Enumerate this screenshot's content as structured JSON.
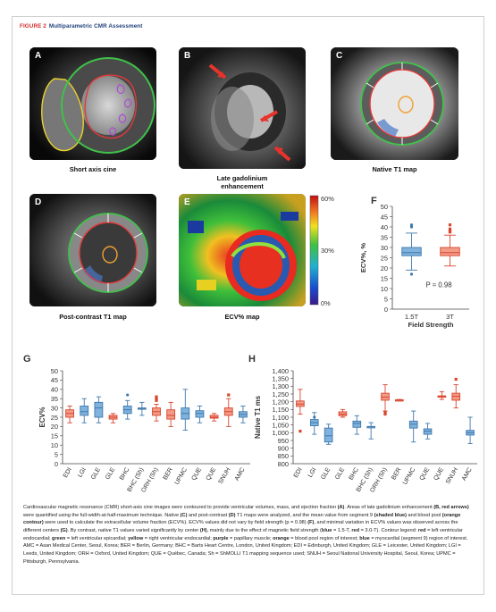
{
  "header": {
    "figure_label": "FIGURE 2",
    "title": "Multiparametric CMR Assessment"
  },
  "panels": {
    "a": {
      "letter": "A",
      "caption": "Short axis cine"
    },
    "b": {
      "letter": "B",
      "caption_line1": "Late gadolinium",
      "caption_line2": "enhancement"
    },
    "c": {
      "letter": "C",
      "caption": "Native T1 map"
    },
    "d": {
      "letter": "D",
      "caption": "Post-contrast T1 map"
    },
    "e": {
      "letter": "E",
      "caption": "ECV% map",
      "colorbar_ticks": [
        "60%",
        "30%",
        "0%"
      ]
    },
    "f": {
      "letter": "F"
    },
    "g": {
      "letter": "G"
    },
    "h": {
      "letter": "H"
    }
  },
  "colors": {
    "blue": "#7fb2dc",
    "blue_edge": "#3f78ad",
    "red": "#f29b86",
    "red_edge": "#d9452e"
  },
  "chart_data": [
    {
      "id": "F",
      "type": "box",
      "ylabel": "ECV%, %",
      "xlabel": "Field Strength",
      "ylim": [
        0,
        50
      ],
      "yticks": [
        0,
        5,
        10,
        15,
        20,
        25,
        30,
        35,
        40,
        45,
        50
      ],
      "categories": [
        "1.5T",
        "3T"
      ],
      "boxes": [
        {
          "category": "1.5T",
          "color": "blue",
          "min": 19,
          "q1": 26,
          "median": 27.5,
          "q3": 30,
          "max": 37,
          "outliers": [
            40,
            41,
            17
          ]
        },
        {
          "category": "3T",
          "color": "red",
          "min": 21,
          "q1": 26,
          "median": 27.5,
          "q3": 30,
          "max": 36,
          "outliers": [
            37.5,
            38,
            39,
            41
          ]
        }
      ],
      "annotation": "P = 0.98"
    },
    {
      "id": "G",
      "type": "box",
      "ylabel": "ECV%",
      "ylim": [
        0,
        50
      ],
      "yticks": [
        0,
        5,
        10,
        15,
        20,
        25,
        30,
        35,
        40,
        45,
        50
      ],
      "categories": [
        "EDI",
        "LGI",
        "GLE",
        "GLE",
        "BHC",
        "BHC (Sh)",
        "ORH (Sh)",
        "BER",
        "UPMC",
        "QUE",
        "QUE",
        "SNUH",
        "AMC"
      ],
      "boxes": [
        {
          "category": "EDI",
          "color": "red",
          "min": 22,
          "q1": 25,
          "median": 27,
          "q3": 29,
          "max": 31,
          "outliers": []
        },
        {
          "category": "LGI",
          "color": "blue",
          "min": 22,
          "q1": 26,
          "median": 28,
          "q3": 31,
          "max": 35,
          "outliers": []
        },
        {
          "category": "GLE",
          "color": "blue",
          "min": 22,
          "q1": 25,
          "median": 30,
          "q3": 33,
          "max": 36,
          "outliers": []
        },
        {
          "category": "GLE",
          "color": "red",
          "min": 22,
          "q1": 24,
          "median": 25,
          "q3": 26,
          "max": 27,
          "outliers": []
        },
        {
          "category": "BHC",
          "color": "blue",
          "min": 24,
          "q1": 27,
          "median": 29,
          "q3": 31,
          "max": 34,
          "outliers": [
            37
          ]
        },
        {
          "category": "BHC (Sh)",
          "color": "blue",
          "min": 26,
          "q1": 29.5,
          "median": 29.5,
          "q3": 30,
          "max": 33,
          "outliers": []
        },
        {
          "category": "ORH (Sh)",
          "color": "red",
          "min": 23,
          "q1": 26,
          "median": 28,
          "q3": 30,
          "max": 32,
          "outliers": [
            34,
            35,
            36
          ]
        },
        {
          "category": "BER",
          "color": "red",
          "min": 20,
          "q1": 24,
          "median": 26,
          "q3": 29,
          "max": 33,
          "outliers": []
        },
        {
          "category": "UPMC",
          "color": "blue",
          "min": 18,
          "q1": 24,
          "median": 27,
          "q3": 30,
          "max": 40,
          "outliers": []
        },
        {
          "category": "QUE",
          "color": "blue",
          "min": 22,
          "q1": 25,
          "median": 27,
          "q3": 28.5,
          "max": 31,
          "outliers": []
        },
        {
          "category": "QUE",
          "color": "red",
          "min": 23,
          "q1": 24.5,
          "median": 25,
          "q3": 26,
          "max": 27,
          "outliers": []
        },
        {
          "category": "SNUH",
          "color": "red",
          "min": 20,
          "q1": 26,
          "median": 28,
          "q3": 30,
          "max": 35,
          "outliers": [
            37
          ]
        },
        {
          "category": "AMC",
          "color": "blue",
          "min": 22,
          "q1": 25,
          "median": 26.5,
          "q3": 28,
          "max": 31,
          "outliers": []
        }
      ]
    },
    {
      "id": "H",
      "type": "box",
      "ylabel": "Native T1 ms",
      "ylim": [
        800,
        1400
      ],
      "yticks": [
        800,
        850,
        900,
        950,
        1000,
        1050,
        1100,
        1150,
        1200,
        1250,
        1300,
        1350,
        1400
      ],
      "ytick_labels": [
        "800",
        "850",
        "900",
        "950",
        "1,000",
        "1,050",
        "1,100",
        "1,150",
        "1,200",
        "1,250",
        "1,300",
        "1,350",
        "1,400"
      ],
      "categories": [
        "EDI",
        "LGI",
        "GLE",
        "GLE",
        "BHC",
        "BHC (Sh)",
        "ORH (Sh)",
        "BER",
        "UPMC",
        "QUE",
        "QUE",
        "SNUH",
        "AMC"
      ],
      "boxes": [
        {
          "category": "EDI",
          "color": "red",
          "min": 1120,
          "q1": 1170,
          "median": 1185,
          "q3": 1205,
          "max": 1280,
          "outliers": [
            1010
          ]
        },
        {
          "category": "LGI",
          "color": "blue",
          "min": 990,
          "q1": 1045,
          "median": 1065,
          "q3": 1085,
          "max": 1130,
          "outliers": [
            1100
          ]
        },
        {
          "category": "GLE",
          "color": "blue",
          "min": 925,
          "q1": 940,
          "median": 980,
          "q3": 1030,
          "max": 1055,
          "outliers": []
        },
        {
          "category": "GLE",
          "color": "red",
          "min": 1100,
          "q1": 1110,
          "median": 1120,
          "q3": 1135,
          "max": 1150,
          "outliers": []
        },
        {
          "category": "BHC",
          "color": "blue",
          "min": 990,
          "q1": 1035,
          "median": 1060,
          "q3": 1075,
          "max": 1110,
          "outliers": []
        },
        {
          "category": "BHC (Sh)",
          "color": "blue",
          "min": 960,
          "q1": 1040,
          "median": 1040,
          "q3": 1040,
          "max": 1065,
          "outliers": []
        },
        {
          "category": "ORH (Sh)",
          "color": "red",
          "min": 1140,
          "q1": 1210,
          "median": 1230,
          "q3": 1255,
          "max": 1310,
          "outliers": [
            1130,
            1120
          ]
        },
        {
          "category": "BER",
          "color": "red",
          "min": 1205,
          "q1": 1209,
          "median": 1211,
          "q3": 1213,
          "max": 1215,
          "outliers": []
        },
        {
          "category": "UPMC",
          "color": "blue",
          "min": 940,
          "q1": 1030,
          "median": 1055,
          "q3": 1075,
          "max": 1140,
          "outliers": []
        },
        {
          "category": "QUE",
          "color": "blue",
          "min": 960,
          "q1": 990,
          "median": 1010,
          "q3": 1025,
          "max": 1060,
          "outliers": []
        },
        {
          "category": "QUE",
          "color": "red",
          "min": 1215,
          "q1": 1230,
          "median": 1235,
          "q3": 1238,
          "max": 1265,
          "outliers": []
        },
        {
          "category": "SNUH",
          "color": "red",
          "min": 1160,
          "q1": 1210,
          "median": 1235,
          "q3": 1255,
          "max": 1310,
          "outliers": [
            1345
          ]
        },
        {
          "category": "AMC",
          "color": "blue",
          "min": 930,
          "q1": 985,
          "median": 1000,
          "q3": 1015,
          "max": 1100,
          "outliers": []
        }
      ]
    }
  ],
  "caption_segments": [
    {
      "t": "Cardiovascular magnetic resonance (CMR) short-axis cine images were contoured to provide ventricular volumes, mass, and ejection fraction ",
      "b": false
    },
    {
      "t": "(A)",
      "b": true
    },
    {
      "t": ". Areas of late gadolinium enhancement ",
      "b": false
    },
    {
      "t": "(B, red arrows)",
      "b": true
    },
    {
      "t": " were quantified using the full-width-at-half-maximum technique. Native ",
      "b": false
    },
    {
      "t": "(C)",
      "b": true
    },
    {
      "t": " and post-contrast ",
      "b": false
    },
    {
      "t": "(D)",
      "b": true
    },
    {
      "t": " T1 maps were analyzed, and the mean value from segment 9 ",
      "b": false
    },
    {
      "t": "(shaded blue)",
      "b": true
    },
    {
      "t": " and blood pool ",
      "b": false
    },
    {
      "t": "(orange contour)",
      "b": true
    },
    {
      "t": " were used to calculate the extracellular volume fraction (ECV%). ECV% values did not vary by field strength (p = 0.98) ",
      "b": false
    },
    {
      "t": "(F)",
      "b": true
    },
    {
      "t": ", and minimal variation in ECV% values was observed across the different centers ",
      "b": false
    },
    {
      "t": "(G)",
      "b": true
    },
    {
      "t": ". By contrast, native T1 values varied significantly by center ",
      "b": false
    },
    {
      "t": "(H)",
      "b": true
    },
    {
      "t": ", mainly due to the effect of magnetic field strength (",
      "b": false
    },
    {
      "t": "blue",
      "b": true
    },
    {
      "t": " = 1.5-T, ",
      "b": false
    },
    {
      "t": "red",
      "b": true
    },
    {
      "t": " = 3.0-T). Contour legend: ",
      "b": false
    },
    {
      "t": "red",
      "b": true
    },
    {
      "t": " = left ventricular endocardial; ",
      "b": false
    },
    {
      "t": "green",
      "b": true
    },
    {
      "t": " = left ventricular epicardial; ",
      "b": false
    },
    {
      "t": "yellow",
      "b": true
    },
    {
      "t": " = right ventricular endocardial; ",
      "b": false
    },
    {
      "t": "purple",
      "b": true
    },
    {
      "t": " = papillary muscle; ",
      "b": false
    },
    {
      "t": "orange",
      "b": true
    },
    {
      "t": " = blood pool region of interest; ",
      "b": false
    },
    {
      "t": "blue",
      "b": true
    },
    {
      "t": " = myocardial (segment 9) region of interest. AMC = Asan Medical Center, Seoul, Korea; BER = Berlin, Germany; BHC = Barts Heart Centre, London, United Kingdom; EDI = Edinburgh, United Kingdom; GLE = Leicester, United Kingdom; LGI = Leeds, United Kingdom; ORH = Oxford, United Kingdom; QUE = Québec, Canada; Sh = ShMOLLI T1 mapping sequence used; SNUH = Seoul National University Hospital, Seoul, Korea; UPMC = Pittsburgh, Pennsylvania.",
      "b": false
    }
  ]
}
